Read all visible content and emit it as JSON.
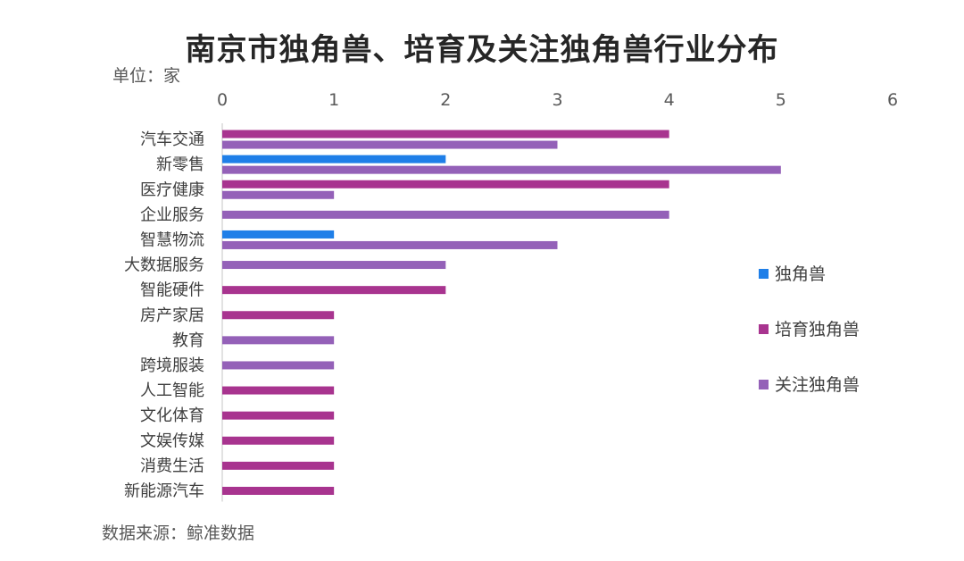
{
  "chart_data": {
    "type": "bar",
    "orientation": "horizontal",
    "title": "南京市独角兽、培育及关注独角兽行业分布",
    "unit": "单位：家",
    "source": "数据来源：鲸准数据",
    "categories": [
      "汽车交通",
      "新零售",
      "医疗健康",
      "企业服务",
      "智慧物流",
      "大数据服务",
      "智能硬件",
      "房产家居",
      "教育",
      "跨境服装",
      "人工智能",
      "文化体育",
      "文娱传媒",
      "消费生活",
      "新能源汽车"
    ],
    "series": [
      {
        "name": "独角兽",
        "color": "#1f7fe8",
        "values": [
          0,
          2,
          0,
          0,
          1,
          0,
          0,
          0,
          0,
          0,
          0,
          0,
          0,
          0,
          0
        ]
      },
      {
        "name": "培育独角兽",
        "color": "#a8348f",
        "values": [
          4,
          0,
          4,
          0,
          0,
          0,
          2,
          1,
          0,
          0,
          1,
          1,
          1,
          1,
          1
        ]
      },
      {
        "name": "关注独角兽",
        "color": "#9461b8",
        "values": [
          3,
          5,
          1,
          4,
          3,
          2,
          0,
          0,
          1,
          1,
          0,
          0,
          0,
          0,
          0
        ]
      }
    ],
    "xlim": [
      0,
      6
    ],
    "xticks": [
      "0",
      "1",
      "2",
      "3",
      "4",
      "5",
      "6"
    ],
    "legend_position": "right",
    "grid": false
  }
}
